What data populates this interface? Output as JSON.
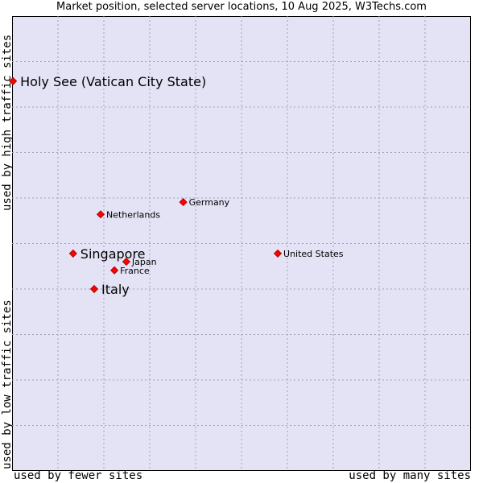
{
  "chart_data": {
    "type": "scatter",
    "title": "Market position, selected server locations, 10 Aug 2025, W3Techs.com",
    "axis_labels": {
      "x_low": "used by fewer sites",
      "x_high": "used by many sites",
      "y_high": "used by high traffic sites",
      "y_low": "used by low traffic sites"
    },
    "xlim": [
      0,
      100
    ],
    "ylim": [
      0,
      100
    ],
    "grid": true,
    "marker_color": "#ff0000",
    "points": [
      {
        "label": "Holy See (Vatican City State)",
        "x": 0.2,
        "y": 85.7,
        "emphasis": true
      },
      {
        "label": "Germany",
        "x": 37.3,
        "y": 59.1,
        "emphasis": false
      },
      {
        "label": "Netherlands",
        "x": 19.3,
        "y": 56.4,
        "emphasis": false
      },
      {
        "label": "United States",
        "x": 57.9,
        "y": 47.8,
        "emphasis": false
      },
      {
        "label": "Singapore",
        "x": 13.3,
        "y": 47.8,
        "emphasis": true
      },
      {
        "label": "Japan",
        "x": 24.9,
        "y": 46.0,
        "emphasis": false
      },
      {
        "label": "France",
        "x": 22.3,
        "y": 44.1,
        "emphasis": false
      },
      {
        "label": "Italy",
        "x": 17.9,
        "y": 40.0,
        "emphasis": true
      }
    ]
  }
}
